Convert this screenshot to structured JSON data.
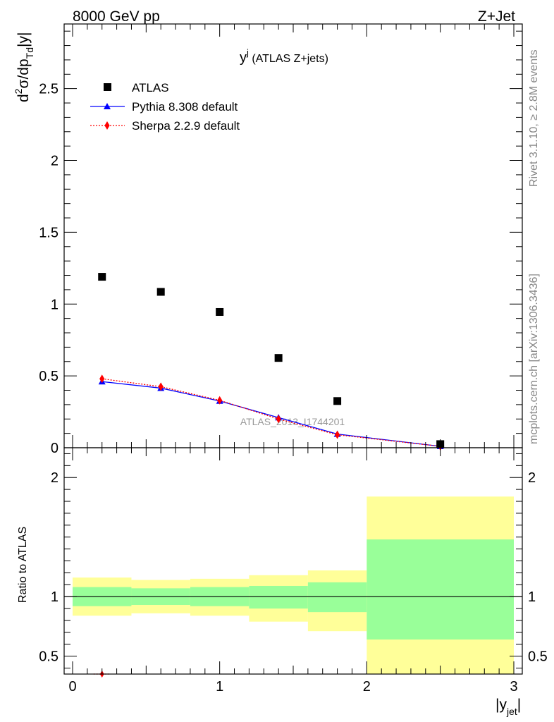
{
  "header": {
    "left": "8000 GeV pp",
    "right": "Z+Jet"
  },
  "plot_title": {
    "main": "y",
    "sup": "j",
    "sub": " (ATLAS Z+jets)"
  },
  "side_text": {
    "rivet": "Rivet 3.1.10, ≥ 2.8M events",
    "mcplots": "mcplots.cern.ch [arXiv:1306.3436]"
  },
  "watermark": "ATLAS_2013_I1744201",
  "y_label_top": {
    "d": "d",
    "sup2": "2",
    "sigma": "σ/dp",
    "sub": "Td",
    "rest": "|y|"
  },
  "y_label_bottom": "Ratio to ATLAS",
  "x_label": {
    "main": "|y",
    "sub": "jet",
    "end": "|"
  },
  "colors": {
    "atlas": "#000000",
    "pythia": "#0000ff",
    "sherpa": "#ff0000",
    "band_inner": "#99ff99",
    "band_outer": "#ffff99"
  },
  "chart_data": [
    {
      "type": "scatter",
      "xlim": [
        0,
        3
      ],
      "ylim": [
        0,
        2.95
      ],
      "y_ticks": [
        "0",
        "0.5",
        "1",
        "1.5",
        "2",
        "2.5"
      ],
      "y_tick_values": [
        0,
        0.5,
        1,
        1.5,
        2,
        2.5
      ],
      "legend_placement": "top-left",
      "series": [
        {
          "name": "ATLAS",
          "marker": "square",
          "x": [
            0.2,
            0.6,
            1.0,
            1.4,
            1.8,
            2.5
          ],
          "y": [
            1.19,
            1.085,
            0.945,
            0.625,
            0.325,
            0.025
          ]
        },
        {
          "name": "Pythia 8.308 default",
          "marker": "triangle",
          "x": [
            0.2,
            0.6,
            1.0,
            1.4,
            1.8,
            2.5
          ],
          "y": [
            0.46,
            0.415,
            0.325,
            0.21,
            0.095,
            0.01
          ]
        },
        {
          "name": "Sherpa 2.2.9 default",
          "marker": "diamond",
          "x": [
            0.2,
            0.6,
            1.0,
            1.4,
            1.8,
            2.5
          ],
          "y": [
            0.48,
            0.425,
            0.33,
            0.2,
            0.09,
            0.01
          ]
        }
      ]
    },
    {
      "type": "area",
      "xlim": [
        0,
        3
      ],
      "ylim": [
        0.35,
        2.25
      ],
      "x_ticks": [
        "0",
        "1",
        "2",
        "3"
      ],
      "x_tick_values": [
        0,
        1,
        2,
        3
      ],
      "y_ticks": [
        "0.5",
        "1",
        "2"
      ],
      "y_tick_values": [
        0.5,
        1,
        2
      ],
      "bins": [
        {
          "x_low": 0.0,
          "x_high": 0.4,
          "inner": [
            0.92,
            1.08
          ],
          "outer": [
            0.84,
            1.16
          ]
        },
        {
          "x_low": 0.4,
          "x_high": 0.8,
          "inner": [
            0.93,
            1.07
          ],
          "outer": [
            0.86,
            1.14
          ]
        },
        {
          "x_low": 0.8,
          "x_high": 1.2,
          "inner": [
            0.92,
            1.08
          ],
          "outer": [
            0.84,
            1.15
          ]
        },
        {
          "x_low": 1.2,
          "x_high": 1.6,
          "inner": [
            0.9,
            1.09
          ],
          "outer": [
            0.79,
            1.18
          ]
        },
        {
          "x_low": 1.6,
          "x_high": 2.0,
          "inner": [
            0.87,
            1.12
          ],
          "outer": [
            0.71,
            1.22
          ]
        },
        {
          "x_low": 2.0,
          "x_high": 3.0,
          "inner": [
            0.64,
            1.48
          ],
          "outer": [
            0.35,
            1.84
          ]
        }
      ],
      "reference": 1,
      "series": [
        {
          "name": "Sherpa 2.2.9 default",
          "x": [
            0.2
          ],
          "y": [
            0.35
          ]
        }
      ]
    }
  ]
}
